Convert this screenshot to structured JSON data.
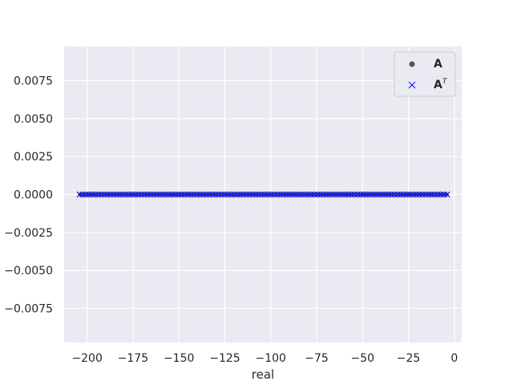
{
  "chart_data": {
    "type": "scatter",
    "xlabel": "real",
    "ylabel": "",
    "xlim": [
      -212.5,
      4
    ],
    "ylim": [
      -0.00975,
      0.00975
    ],
    "grid": true,
    "legend_position": "top-right",
    "xticks": [
      -200,
      -175,
      -150,
      -125,
      -100,
      -75,
      -50,
      -25,
      0
    ],
    "xtick_labels": [
      "−200",
      "−175",
      "−150",
      "−125",
      "−100",
      "−75",
      "−50",
      "−25",
      "0"
    ],
    "yticks": [
      0.0075,
      0.005,
      0.0025,
      0,
      -0.0025,
      -0.005,
      -0.0075
    ],
    "ytick_labels": [
      "0.0075",
      "0.0050",
      "0.0025",
      "0.0000",
      "−0.0025",
      "−0.0050",
      "−0.0075"
    ],
    "series": [
      {
        "name": "A",
        "marker": "dot",
        "color": "#555555",
        "x": [
          -204,
          -4
        ],
        "x_count": 120,
        "y": 0
      },
      {
        "name": "A^T",
        "marker": "x",
        "color": "#0000ff",
        "x": [
          -204,
          -4
        ],
        "x_count": 120,
        "y": 0
      }
    ],
    "colors": {
      "background": "#eaeaf2",
      "grid": "#ffffff",
      "text": "#262626"
    }
  }
}
